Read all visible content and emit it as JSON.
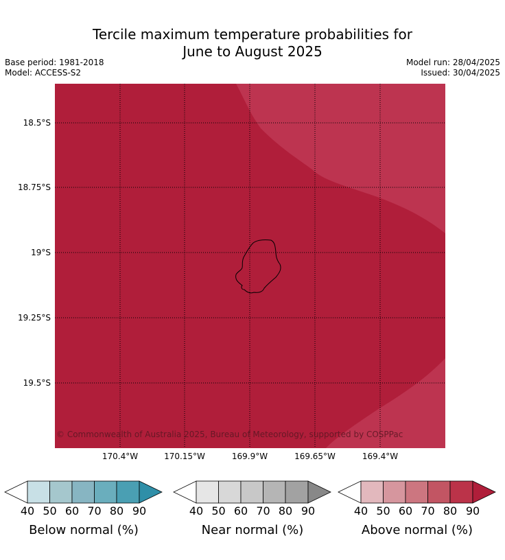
{
  "title_line1": "Tercile maximum temperature probabilities for",
  "title_line2": "June to August 2025",
  "base_period": "Base period: 1981-2018",
  "model": "Model: ACCESS-S2",
  "model_run": "Model run: 28/04/2025",
  "issued": "Issued: 30/04/2025",
  "copyright": "© Commonwealth of Australia 2025, Bureau of Meteorology, supported by COSPPac",
  "map": {
    "latitudes": [
      "18.5°S",
      "18.75°S",
      "19°S",
      "19.25°S",
      "19.5°S"
    ],
    "longitudes": [
      "170.4°W",
      "170.15°W",
      "169.9°W",
      "169.65°W",
      "169.4°W"
    ],
    "colors": {
      "base_fill": "#b01e3a",
      "upper_band": "#bd3450",
      "island_outline": "#000000",
      "grid": "#000000"
    }
  },
  "colorbars": [
    {
      "title": "Below normal (%)",
      "ticks": [
        "40",
        "50",
        "60",
        "70",
        "80",
        "90"
      ],
      "colors": [
        "#ffffff",
        "#c8e0e6",
        "#a5c7cd",
        "#87b5c2",
        "#6aaebd",
        "#4a9fb3",
        "#2f8fa8"
      ]
    },
    {
      "title": "Near normal (%)",
      "ticks": [
        "40",
        "50",
        "60",
        "70",
        "80",
        "90"
      ],
      "colors": [
        "#ffffff",
        "#e6e6e6",
        "#d8d8d8",
        "#c8c8c8",
        "#b5b5b5",
        "#a2a2a2",
        "#888888"
      ]
    },
    {
      "title": "Above normal (%)",
      "ticks": [
        "40",
        "50",
        "60",
        "70",
        "80",
        "90"
      ],
      "colors": [
        "#ffffff",
        "#e2b8bd",
        "#d6969e",
        "#cc7680",
        "#c25563",
        "#bb3349",
        "#b01e3a"
      ]
    }
  ]
}
